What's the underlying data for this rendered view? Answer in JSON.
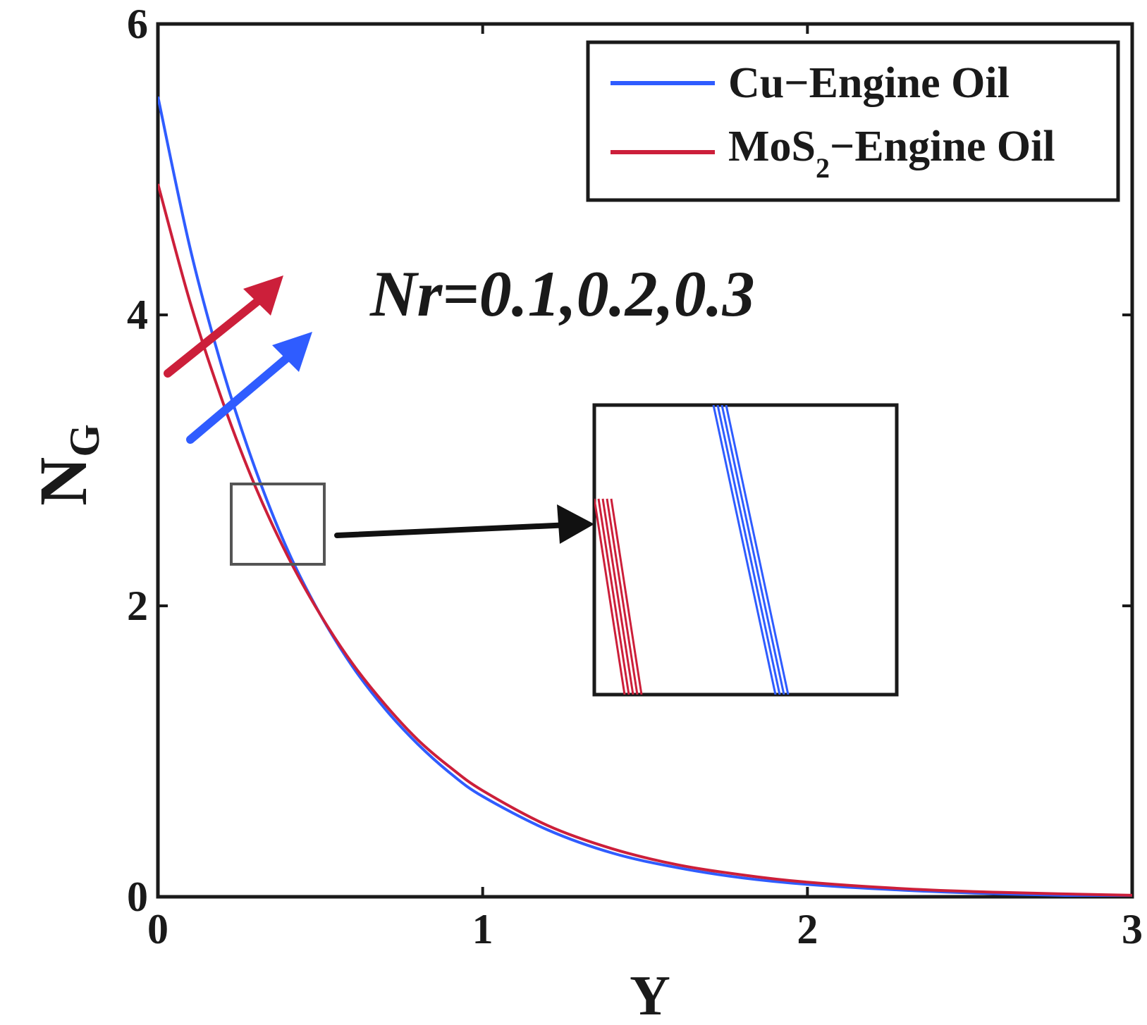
{
  "chart_data": {
    "type": "line",
    "xlabel": "Υ",
    "ylabel": {
      "main": "N",
      "sub": "G"
    },
    "xlim": [
      0,
      3
    ],
    "ylim": [
      0,
      6
    ],
    "xticks": [
      "0",
      "1",
      "2",
      "3"
    ],
    "yticks": [
      "0",
      "2",
      "4",
      "6"
    ],
    "grid": false,
    "legend_position": "top-right",
    "colors": {
      "cu": "#2f5cff",
      "mos2": "#cc1f3a",
      "axis": "#1a1a1a",
      "zoom_box": "#555555"
    },
    "series": [
      {
        "name": "Cu−Engine Oil",
        "legend_main": "Cu−Engine Oil",
        "color": "#2f5cff",
        "x": [
          0,
          0.1,
          0.2,
          0.3,
          0.4,
          0.5,
          0.6,
          0.7,
          0.8,
          0.9,
          1.0,
          1.2,
          1.4,
          1.6,
          1.8,
          2.0,
          2.3,
          2.6,
          3.0
        ],
        "y": [
          5.5,
          4.45,
          3.62,
          2.94,
          2.38,
          1.94,
          1.58,
          1.29,
          1.05,
          0.85,
          0.69,
          0.46,
          0.3,
          0.2,
          0.13,
          0.085,
          0.045,
          0.02,
          0.0
        ]
      },
      {
        "name": "MoS2−Engine Oil",
        "legend_main": "MoS",
        "legend_sub": "2",
        "legend_rest": "−Engine Oil",
        "color": "#cc1f3a",
        "x": [
          0,
          0.1,
          0.2,
          0.3,
          0.4,
          0.5,
          0.6,
          0.7,
          0.8,
          0.9,
          1.0,
          1.2,
          1.4,
          1.6,
          1.8,
          2.0,
          2.3,
          2.6,
          3.0
        ],
        "y": [
          4.9,
          4.08,
          3.4,
          2.82,
          2.34,
          1.94,
          1.6,
          1.32,
          1.08,
          0.89,
          0.73,
          0.49,
          0.33,
          0.22,
          0.15,
          0.1,
          0.055,
          0.03,
          0.01
        ]
      }
    ],
    "annotations": [
      {
        "text": "Nr=0.1,0.2,0.3"
      }
    ]
  }
}
